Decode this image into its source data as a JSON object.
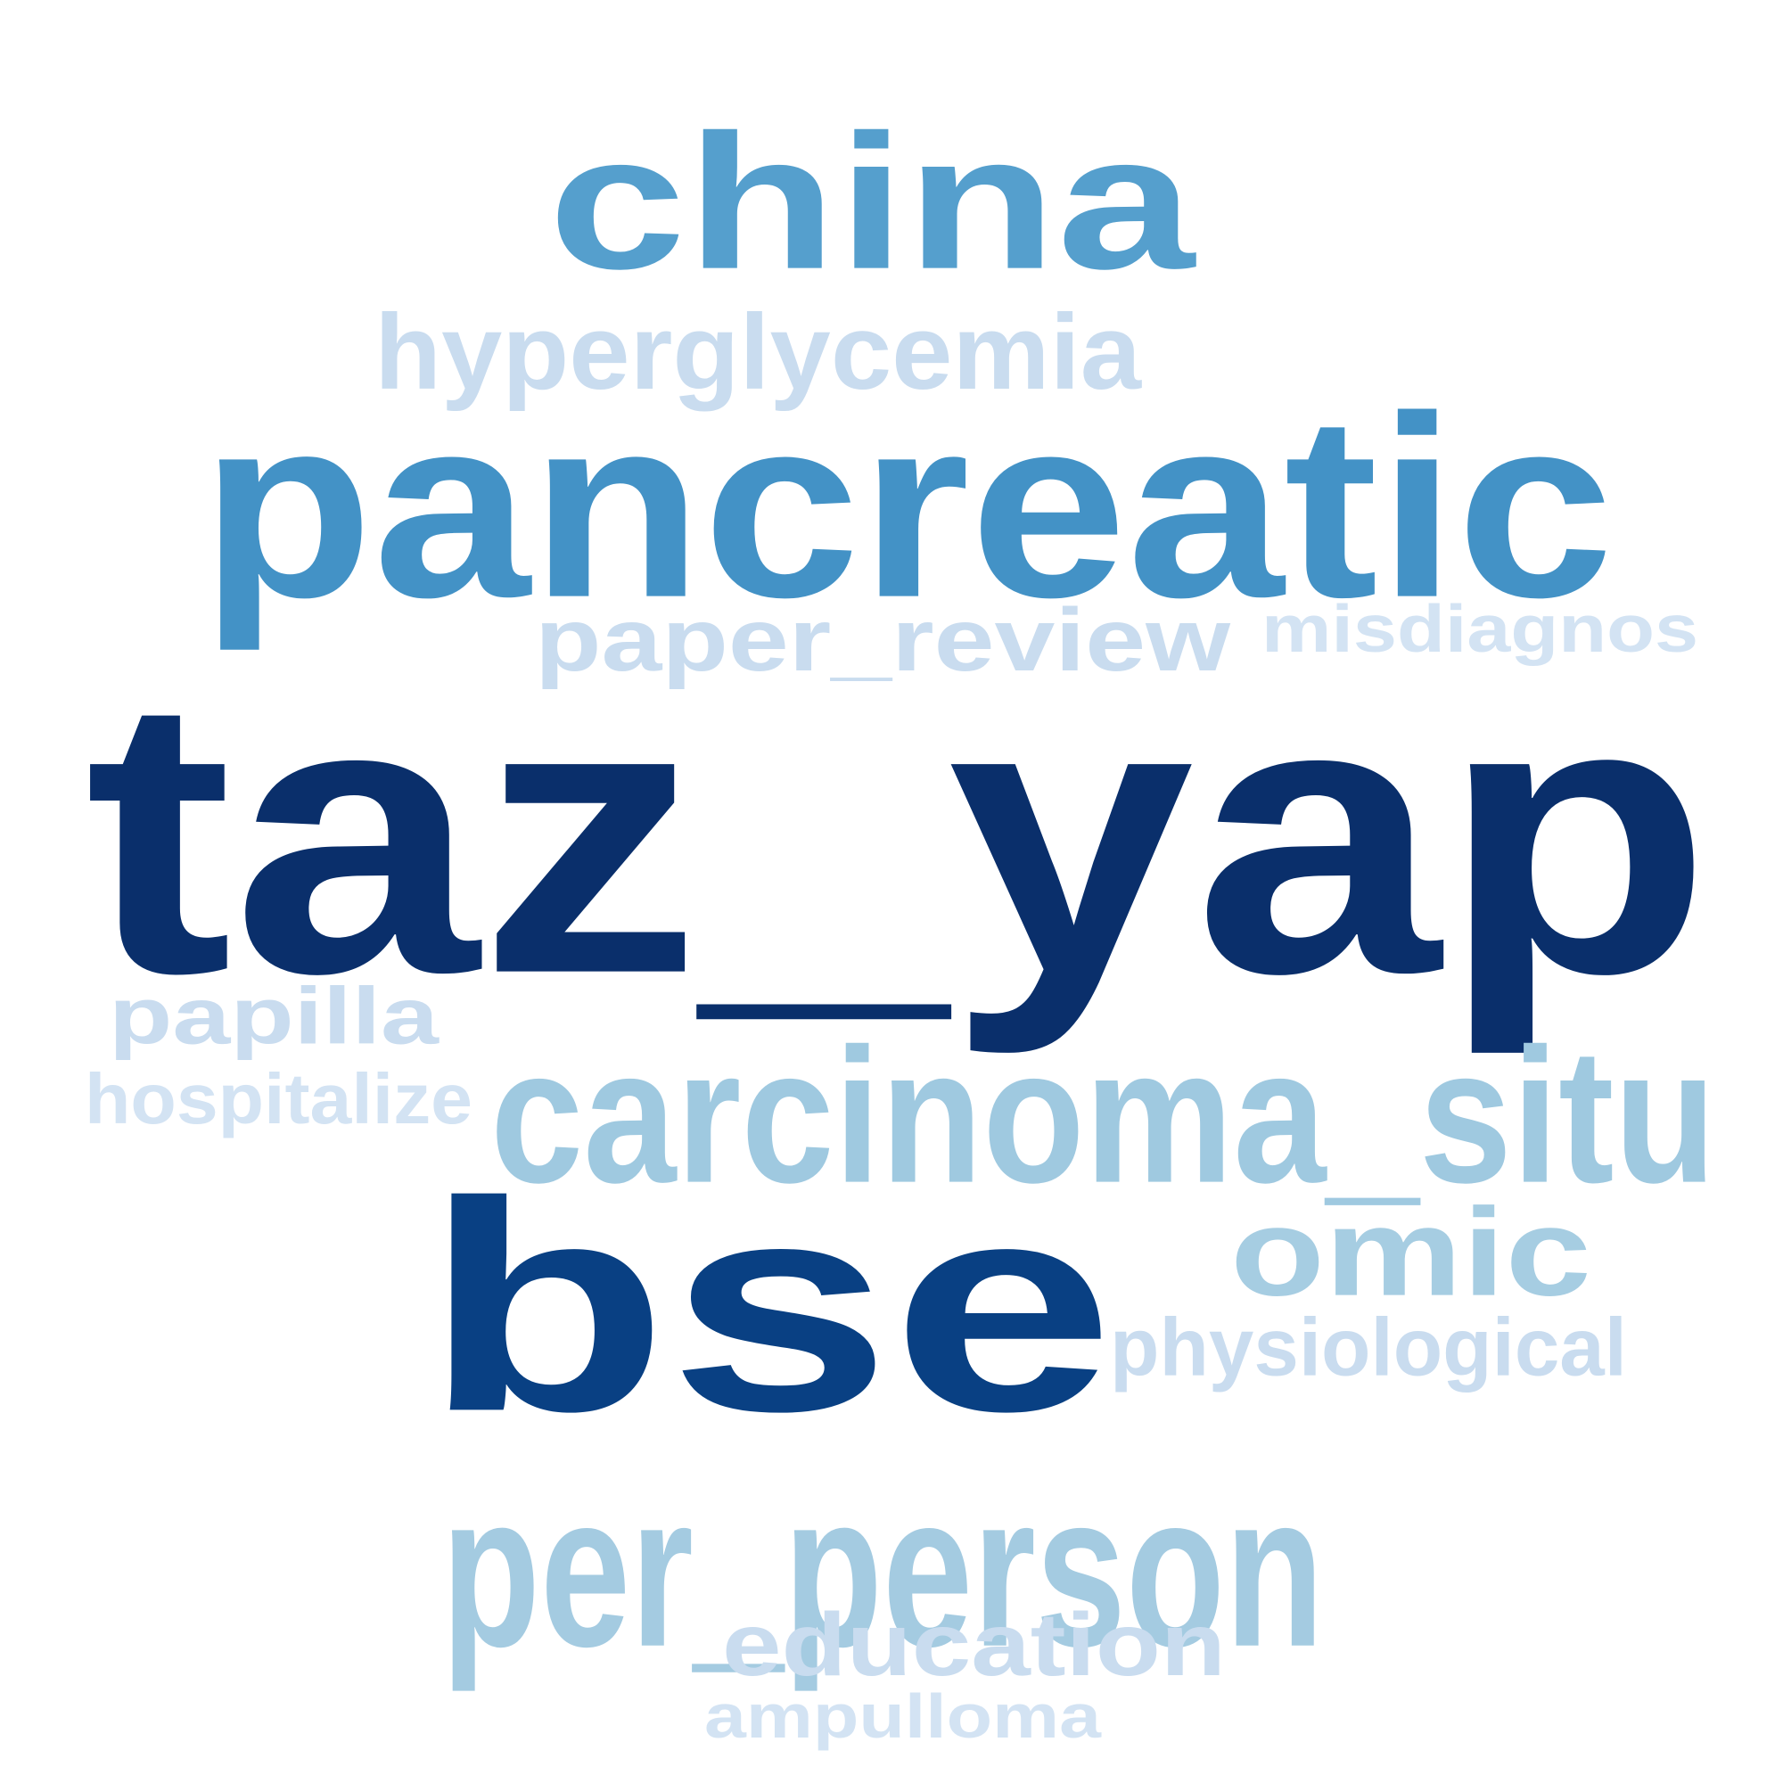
{
  "words": [
    {
      "text": "china",
      "color": "#559fcd"
    },
    {
      "text": "hyperglycemia",
      "color": "#c9dcef"
    },
    {
      "text": "pancreatic",
      "color": "#4392c6"
    },
    {
      "text": "paper_review",
      "color": "#c9dcef"
    },
    {
      "text": "misdiagnos",
      "color": "#d3e3f3"
    },
    {
      "text": "taz_yap",
      "color": "#0a2f6b"
    },
    {
      "text": "papilla",
      "color": "#c9dcef"
    },
    {
      "text": "hospitalize",
      "color": "#d3e3f3"
    },
    {
      "text": "carcinoma_situ",
      "color": "#9fc9e0"
    },
    {
      "text": "bse",
      "color": "#094083"
    },
    {
      "text": "omic",
      "color": "#a6cde2"
    },
    {
      "text": "physiological",
      "color": "#c9dcef"
    },
    {
      "text": "per_person",
      "color": "#a4cbe1"
    },
    {
      "text": "education",
      "color": "#c9dcef"
    },
    {
      "text": "ampulloma",
      "color": "#d3e3f3"
    }
  ]
}
